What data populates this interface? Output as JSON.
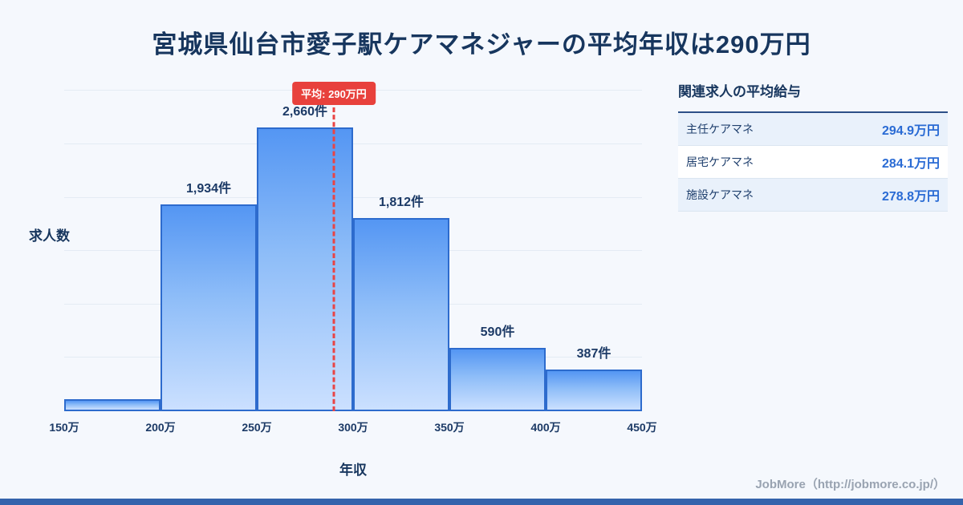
{
  "page": {
    "title": "宮城県仙台市愛子駅ケアマネジャーの平均年収は290万円",
    "credit": "JobMore（http://jobmore.co.jp/）"
  },
  "chart_data": {
    "type": "bar",
    "title": "宮城県仙台市愛子駅ケアマネジャーの平均年収は290万円",
    "xlabel": "年収",
    "ylabel": "求人数",
    "bin_edges": [
      "150万",
      "200万",
      "250万",
      "300万",
      "350万",
      "400万",
      "450万"
    ],
    "values": [
      110,
      1934,
      2660,
      1812,
      590,
      387
    ],
    "bar_labels": [
      "",
      "1,934件",
      "2,660件",
      "1,812件",
      "590件",
      "387件"
    ],
    "ylim": [
      0,
      3100
    ],
    "grid_step": 500,
    "x_range": [
      150,
      450
    ],
    "average": {
      "value": 290,
      "label": "平均: 290万円"
    },
    "colors": {
      "bar_top": "#5496f3",
      "bar_bottom": "#cbe0ff",
      "bar_border": "#2d6bcd",
      "average_line": "#e94444",
      "badge_bg": "#e8413c",
      "text_navy": "#17365e",
      "value_blue": "#2a6bd4"
    },
    "legend": null,
    "grid": true
  },
  "sidebar": {
    "title": "関連求人の平均給与",
    "rows": [
      {
        "name": "主任ケアマネ",
        "value": "294.9万円"
      },
      {
        "name": "居宅ケアマネ",
        "value": "284.1万円"
      },
      {
        "name": "施設ケアマネ",
        "value": "278.8万円"
      }
    ]
  }
}
